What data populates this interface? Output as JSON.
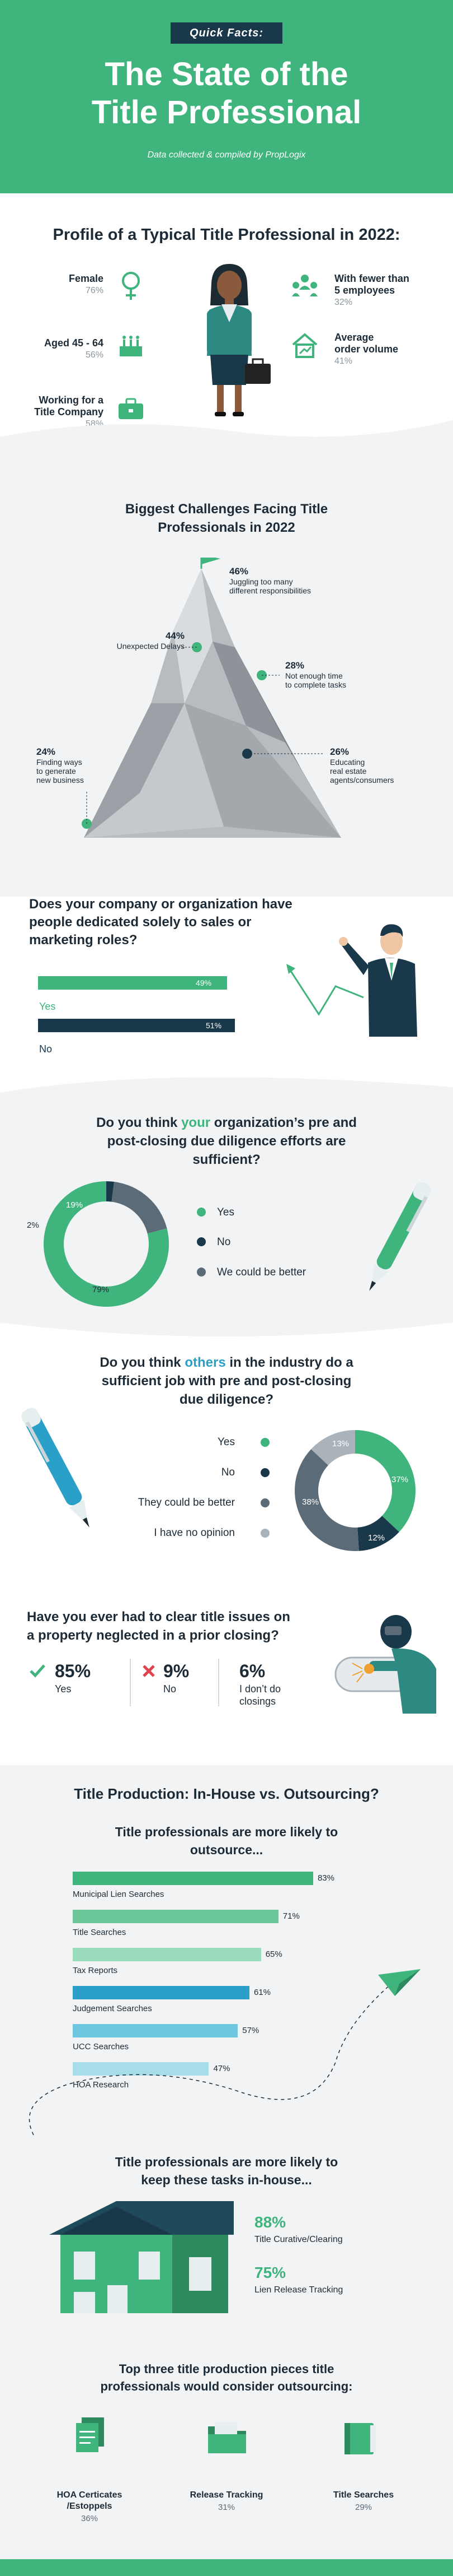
{
  "header": {
    "tag": "Quick Facts:",
    "title_line1": "The State of the",
    "title_line2": "Title Professional",
    "subtitle": "Data collected & compiled by PropLogix"
  },
  "profile": {
    "title": "Profile of a Typical Title Professional in 2022:",
    "left": [
      {
        "label": "Female",
        "value": "76%"
      },
      {
        "label": "Aged 45 - 64",
        "value": "56%"
      },
      {
        "label_line1": "Working for a",
        "label_line2": "Title Company",
        "value": "58%"
      }
    ],
    "right": [
      {
        "label_line1": "With fewer than",
        "label_line2": "5 employees",
        "value": "32%"
      },
      {
        "label_line1": "Average",
        "label_line2": "order volume",
        "value": "41%"
      }
    ]
  },
  "challenges": {
    "title_line1": "Biggest Challenges Facing Title",
    "title_line2": "Professionals in 2022",
    "items": [
      {
        "pct": "46%",
        "line1": "Juggling too many",
        "line2": "different responsibilities"
      },
      {
        "pct": "44%",
        "line1": "Unexpected Delays",
        "line2": ""
      },
      {
        "pct": "28%",
        "line1": "Not enough time",
        "line2": "to complete tasks"
      },
      {
        "pct": "24%",
        "line1": "Finding ways",
        "line2": "to generate",
        "line3": "new business"
      },
      {
        "pct": "26%",
        "line1": "Educating",
        "line2": "real estate",
        "line3": "agents/consumers"
      }
    ]
  },
  "sales": {
    "title_line1": "Does your company or organization have",
    "title_line2": "people dedicated solely to sales or",
    "title_line3": "marketing roles?",
    "yes_label": "Yes",
    "yes_value": "49%",
    "no_label": "No",
    "no_value": "51%"
  },
  "q_own": {
    "title_pre": "Do you think ",
    "title_hl": "your",
    "title_post": " organization’s pre and",
    "title_line2": "post-closing due diligence efforts are",
    "title_line3": "sufficient?",
    "legend": [
      "Yes",
      "No",
      "We could be better"
    ],
    "labels": [
      "79%",
      "2%",
      "19%"
    ]
  },
  "q_others": {
    "title_pre": "Do you think ",
    "title_hl": "others",
    "title_post": " in the industry do a",
    "title_line2": "sufficient job with pre and post-closing",
    "title_line3": "due diligence?",
    "legend": [
      "Yes",
      "No",
      "They could be better",
      "I have no opinion"
    ],
    "labels": [
      "37%",
      "12%",
      "38%",
      "13%"
    ]
  },
  "clear": {
    "title_line1": "Have you ever had to clear title issues on",
    "title_line2": "a property neglected in a prior closing?",
    "yes_value": "85%",
    "yes_label": "Yes",
    "no_value": "9%",
    "no_label": "No",
    "idk_value": "6%",
    "idk_line1": "I don’t do",
    "idk_line2": "closings"
  },
  "production": {
    "title": "Title Production: In-House vs. Outsourcing?",
    "outsource_title_line1": "Title professionals are more likely to",
    "outsource_title_line2": "outsource...",
    "bars": [
      {
        "label": "Municipal Lien Searches",
        "value": "83%"
      },
      {
        "label": "Title Searches",
        "value": "71%"
      },
      {
        "label": "Tax Reports",
        "value": "65%"
      },
      {
        "label": "Judgement Searches",
        "value": "61%"
      },
      {
        "label": "UCC Searches",
        "value": "57%"
      },
      {
        "label": "HOA Research",
        "value": "47%"
      }
    ],
    "inhouse_title_line1": "Title professionals are more likely to",
    "inhouse_title_line2": "keep these tasks in-house...",
    "inhouse": [
      {
        "value": "88%",
        "label": "Title Curative/Clearing"
      },
      {
        "value": "75%",
        "label": "Lien Release Tracking"
      }
    ],
    "top3_title_line1": "Top three title production pieces title",
    "top3_title_line2": "professionals would consider outsourcing:",
    "top3": [
      {
        "line1": "HOA Certicates",
        "line2": "/Estoppels",
        "value": "36%"
      },
      {
        "line1": "Release Tracking",
        "line2": "",
        "value": "31%"
      },
      {
        "line1": "Title Searches",
        "line2": "",
        "value": "29%"
      }
    ]
  },
  "colors": {
    "green": "#3fb47c",
    "navy": "#19384a",
    "slate": "#5b6b78",
    "light": "#f1f3f5"
  }
}
